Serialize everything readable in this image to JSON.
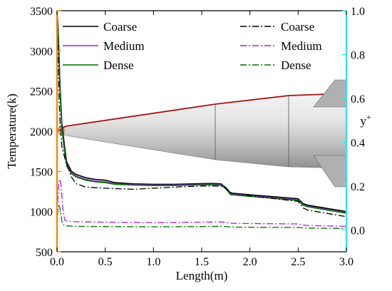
{
  "chart_data": {
    "type": "line",
    "xlabel": "Length(m)",
    "ylabel_left": "Temperature(k)",
    "ylabel_right_base": "y",
    "ylabel_right_sup": "+",
    "xlim": [
      0.0,
      3.0
    ],
    "ylim_left": [
      500,
      3500
    ],
    "ylim_right": [
      -0.1,
      1.0
    ],
    "x_ticks": [
      0.0,
      0.5,
      1.0,
      1.5,
      2.0,
      2.5,
      3.0
    ],
    "x_tick_labels": [
      "0.0",
      "0.5",
      "1.0",
      "1.5",
      "2.0",
      "2.5",
      "3.0"
    ],
    "y_left_ticks": [
      500,
      1000,
      1500,
      2000,
      2500,
      3000,
      3500
    ],
    "y_left_tick_labels": [
      "500",
      "1000",
      "1500",
      "2000",
      "2500",
      "3000",
      "3500"
    ],
    "y_right_ticks": [
      0.0,
      0.2,
      0.4,
      0.6,
      0.8,
      1.0
    ],
    "y_right_tick_labels": [
      "0.0",
      "0.2",
      "0.4",
      "0.6",
      "0.8",
      "1.0"
    ],
    "grid": false,
    "legend_left": {
      "placement": "top-left",
      "entries": [
        "Coarse",
        "Medium",
        "Dense"
      ]
    },
    "legend_right": {
      "placement": "top-right",
      "entries": [
        "Coarse",
        "Medium",
        "Dense"
      ]
    },
    "series": [
      {
        "name": "Coarse",
        "axis": "left",
        "style": "solid",
        "color": "#000000",
        "x": [
          0.0,
          0.01,
          0.02,
          0.03,
          0.05,
          0.08,
          0.1,
          0.15,
          0.2,
          0.3,
          0.4,
          0.5,
          0.6,
          0.8,
          1.0,
          1.2,
          1.4,
          1.6,
          1.7,
          1.75,
          1.8,
          2.0,
          2.2,
          2.4,
          2.5,
          2.55,
          2.6,
          2.8,
          3.0
        ],
        "y": [
          3480,
          3300,
          3000,
          2600,
          2100,
          1800,
          1620,
          1500,
          1460,
          1420,
          1400,
          1390,
          1360,
          1345,
          1340,
          1340,
          1345,
          1350,
          1345,
          1300,
          1230,
          1210,
          1190,
          1170,
          1160,
          1100,
          1080,
          1040,
          1000
        ]
      },
      {
        "name": "Medium",
        "axis": "left",
        "style": "solid",
        "color": "#a020f0",
        "x": [
          0.0,
          0.01,
          0.02,
          0.03,
          0.05,
          0.08,
          0.1,
          0.15,
          0.2,
          0.3,
          0.4,
          0.5,
          0.6,
          0.8,
          1.0,
          1.2,
          1.4,
          1.6,
          1.7,
          1.75,
          1.8,
          2.0,
          2.2,
          2.4,
          2.5,
          2.55,
          2.6,
          2.8,
          3.0
        ],
        "y": [
          3450,
          3250,
          2950,
          2550,
          2050,
          1750,
          1580,
          1480,
          1440,
          1400,
          1380,
          1370,
          1345,
          1335,
          1330,
          1330,
          1335,
          1340,
          1335,
          1290,
          1215,
          1195,
          1175,
          1155,
          1145,
          1085,
          1065,
          1025,
          985
        ]
      },
      {
        "name": "Dense",
        "axis": "left",
        "style": "solid",
        "color": "#007000",
        "x": [
          0.0,
          0.01,
          0.02,
          0.03,
          0.05,
          0.08,
          0.1,
          0.15,
          0.2,
          0.3,
          0.4,
          0.5,
          0.6,
          0.8,
          1.0,
          1.2,
          1.4,
          1.6,
          1.7,
          1.75,
          1.8,
          2.0,
          2.2,
          2.4,
          2.5,
          2.55,
          2.6,
          2.8,
          3.0
        ],
        "y": [
          3430,
          3230,
          2930,
          2530,
          2030,
          1730,
          1570,
          1470,
          1430,
          1390,
          1370,
          1360,
          1340,
          1330,
          1325,
          1325,
          1330,
          1335,
          1330,
          1285,
          1210,
          1190,
          1170,
          1150,
          1140,
          1080,
          1060,
          1020,
          980
        ]
      },
      {
        "name": "Coarse",
        "axis": "right",
        "style": "dashdot",
        "color": "#000000",
        "x": [
          0.0,
          0.01,
          0.02,
          0.03,
          0.05,
          0.08,
          0.1,
          0.15,
          0.2,
          0.3,
          0.5,
          0.8,
          1.0,
          1.2,
          1.5,
          1.7,
          1.75,
          1.8,
          2.0,
          2.2,
          2.4,
          2.5,
          2.55,
          2.6,
          2.8,
          3.0
        ],
        "y": [
          0.9,
          0.85,
          0.62,
          0.5,
          0.38,
          0.33,
          0.3,
          0.24,
          0.21,
          0.195,
          0.19,
          0.185,
          0.19,
          0.195,
          0.2,
          0.2,
          0.19,
          0.17,
          0.155,
          0.145,
          0.135,
          0.13,
          0.1,
          0.09,
          0.075,
          0.06
        ]
      },
      {
        "name": "Medium",
        "axis": "right",
        "style": "dashdot",
        "color": "#a020f0",
        "x": [
          0.0,
          0.01,
          0.02,
          0.03,
          0.04,
          0.05,
          0.06,
          0.08,
          0.1,
          0.2,
          0.5,
          1.0,
          1.5,
          1.7,
          1.75,
          1.8,
          2.0,
          2.5,
          2.55,
          2.6,
          3.0
        ],
        "y": [
          0.07,
          0.15,
          0.22,
          0.23,
          0.21,
          0.16,
          0.1,
          0.045,
          0.04,
          0.037,
          0.035,
          0.033,
          0.035,
          0.036,
          0.034,
          0.03,
          0.029,
          0.027,
          0.022,
          0.02,
          0.016
        ]
      },
      {
        "name": "Dense",
        "axis": "right",
        "style": "dashdot",
        "color": "#007000",
        "x": [
          0.0,
          0.01,
          0.02,
          0.03,
          0.04,
          0.05,
          0.06,
          0.08,
          0.1,
          0.2,
          0.5,
          1.0,
          1.5,
          1.7,
          1.75,
          1.8,
          2.0,
          2.5,
          2.55,
          2.6,
          3.0
        ],
        "y": [
          0.05,
          0.09,
          0.11,
          0.1,
          0.07,
          0.04,
          0.025,
          0.02,
          0.018,
          0.016,
          0.015,
          0.014,
          0.015,
          0.016,
          0.015,
          0.013,
          0.012,
          0.011,
          0.009,
          0.008,
          0.006
        ]
      }
    ]
  }
}
